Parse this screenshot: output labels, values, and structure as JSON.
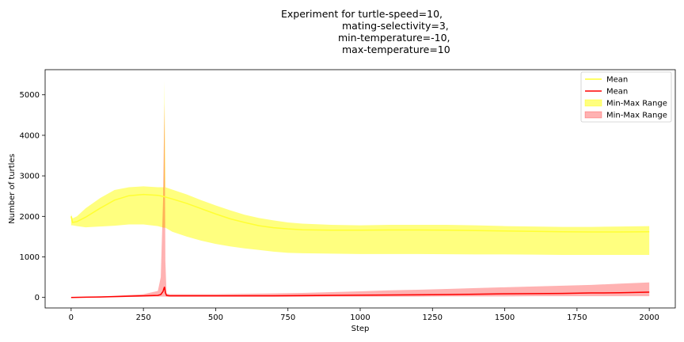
{
  "chart_data": {
    "type": "line",
    "title_lines": [
      "Experiment for turtle-speed=10,",
      "mating-selectivity=3,",
      "min-temperature=-10,",
      "max-temperature=10"
    ],
    "xlabel": "Step",
    "ylabel": "Number of turtles",
    "xlim": [
      -90,
      2090
    ],
    "ylim": [
      -260,
      5620
    ],
    "xticks": [
      0,
      250,
      500,
      750,
      1000,
      1250,
      1500,
      1750,
      2000
    ],
    "yticks": [
      0,
      1000,
      2000,
      3000,
      4000,
      5000
    ],
    "grid": false,
    "legend_position": "top-right",
    "legend": [
      {
        "label": "Mean",
        "kind": "line",
        "color": "#ffff33"
      },
      {
        "label": "Mean",
        "kind": "line",
        "color": "#ff0000"
      },
      {
        "label": "Min-Max Range",
        "kind": "patch",
        "color": "#ffff00",
        "alpha": 0.5
      },
      {
        "label": "Min-Max Range",
        "kind": "patch",
        "color": "#ff0000",
        "alpha": 0.3
      }
    ],
    "series": [
      {
        "name": "Mean",
        "color": "#ffff33",
        "x": [
          0,
          5,
          20,
          50,
          100,
          150,
          200,
          250,
          300,
          320,
          350,
          400,
          450,
          500,
          550,
          600,
          650,
          700,
          750,
          800,
          900,
          1000,
          1100,
          1200,
          1300,
          1400,
          1500,
          1600,
          1700,
          1800,
          1900,
          2000
        ],
        "mean": [
          2000,
          1850,
          1870,
          1980,
          2200,
          2400,
          2510,
          2540,
          2520,
          2490,
          2430,
          2320,
          2190,
          2060,
          1940,
          1850,
          1770,
          1720,
          1690,
          1670,
          1660,
          1660,
          1665,
          1665,
          1660,
          1650,
          1640,
          1630,
          1620,
          1615,
          1615,
          1620
        ],
        "min": [
          1780,
          1780,
          1760,
          1730,
          1750,
          1770,
          1800,
          1800,
          1760,
          1720,
          1620,
          1500,
          1400,
          1320,
          1260,
          1210,
          1170,
          1130,
          1100,
          1090,
          1080,
          1070,
          1070,
          1070,
          1065,
          1060,
          1060,
          1055,
          1050,
          1050,
          1050,
          1050
        ],
        "max": [
          2050,
          1950,
          2000,
          2200,
          2450,
          2650,
          2720,
          2740,
          2720,
          2720,
          2660,
          2540,
          2400,
          2270,
          2150,
          2040,
          1960,
          1900,
          1850,
          1820,
          1790,
          1780,
          1790,
          1790,
          1790,
          1780,
          1760,
          1750,
          1740,
          1740,
          1750,
          1760
        ],
        "spike": {
          "x": 323,
          "max": 5350
        }
      },
      {
        "name": "Mean",
        "color": "#ff0000",
        "x": [
          0,
          50,
          100,
          150,
          200,
          250,
          300,
          310,
          318,
          320,
          323,
          326,
          330,
          340,
          400,
          500,
          600,
          700,
          800,
          900,
          1000,
          1100,
          1200,
          1300,
          1400,
          1500,
          1600,
          1700,
          1800,
          1900,
          2000
        ],
        "mean": [
          0,
          5,
          10,
          20,
          30,
          40,
          50,
          70,
          150,
          200,
          260,
          120,
          50,
          40,
          40,
          40,
          40,
          40,
          45,
          50,
          55,
          60,
          65,
          70,
          80,
          90,
          95,
          100,
          110,
          115,
          130
        ],
        "min": [
          0,
          0,
          0,
          5,
          10,
          15,
          20,
          20,
          20,
          20,
          20,
          20,
          15,
          15,
          15,
          15,
          15,
          15,
          15,
          20,
          20,
          20,
          20,
          25,
          25,
          25,
          30,
          30,
          30,
          30,
          30
        ],
        "max": [
          5,
          15,
          25,
          40,
          60,
          80,
          160,
          500,
          2400,
          3500,
          4800,
          900,
          100,
          80,
          80,
          80,
          90,
          100,
          110,
          130,
          150,
          175,
          190,
          210,
          230,
          250,
          270,
          290,
          310,
          340,
          370
        ]
      }
    ]
  }
}
